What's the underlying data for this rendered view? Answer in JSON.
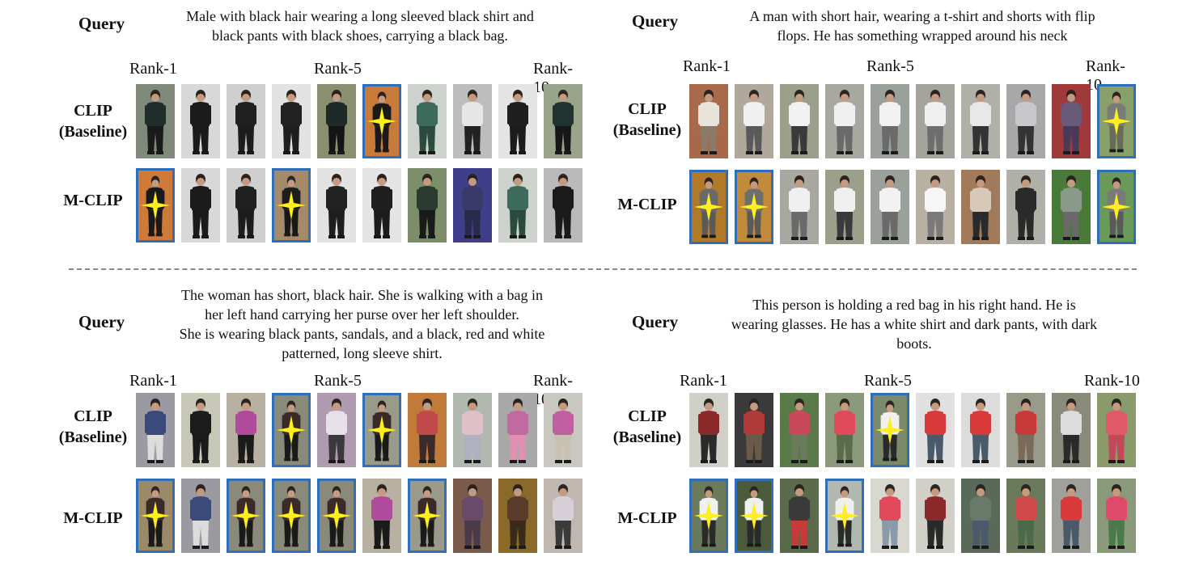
{
  "row_labels": {
    "baseline": [
      "CLIP",
      "(Baseline)"
    ],
    "ours": "M-CLIP"
  },
  "rank_labels": [
    "Rank-1",
    "Rank-5",
    "Rank-10"
  ],
  "query_label": "Query",
  "colors": {
    "match_border": "#2f6fba",
    "star": "#ffef1a",
    "background": "#ffffff"
  },
  "panels": [
    {
      "query_lines": [
        "Male with black hair wearing a long sleeved black shirt and",
        "black pants with black shoes, carrying a black bag."
      ],
      "baseline": [
        {
          "match": false,
          "top": "#1f2d2a",
          "bottom": "#1a1a1a",
          "bg": "#7f8a7a"
        },
        {
          "match": false,
          "top": "#1b1b1b",
          "bottom": "#1b1b1b",
          "bg": "#d8d8d8"
        },
        {
          "match": false,
          "top": "#202020",
          "bottom": "#1c1c1c",
          "bg": "#cfcfcf"
        },
        {
          "match": false,
          "top": "#222222",
          "bottom": "#1e1e1e",
          "bg": "#e2e2e2"
        },
        {
          "match": false,
          "top": "#1d2a28",
          "bottom": "#151515",
          "bg": "#8a8f70"
        },
        {
          "match": true,
          "top": "#1a1a1a",
          "bottom": "#191919",
          "bg": "#c97a3a"
        },
        {
          "match": false,
          "top": "#3e6a5c",
          "bottom": "#2b4a40",
          "bg": "#cdd3cc"
        },
        {
          "match": false,
          "top": "#e6e6e6",
          "bottom": "#222222",
          "bg": "#bdbdbd"
        },
        {
          "match": false,
          "top": "#1f1f1f",
          "bottom": "#1c1c1c",
          "bg": "#e4e4e4"
        },
        {
          "match": false,
          "top": "#203330",
          "bottom": "#171717",
          "bg": "#9aa48a"
        }
      ],
      "ours": [
        {
          "match": true,
          "top": "#1a1a1a",
          "bottom": "#191919",
          "bg": "#d07a3a"
        },
        {
          "match": false,
          "top": "#1b1b1b",
          "bottom": "#1b1b1b",
          "bg": "#d8d8d8"
        },
        {
          "match": false,
          "top": "#202020",
          "bottom": "#1c1c1c",
          "bg": "#cfcfcf"
        },
        {
          "match": true,
          "top": "#1c1c1c",
          "bottom": "#181818",
          "bg": "#a58a6a"
        },
        {
          "match": false,
          "top": "#222222",
          "bottom": "#1e1e1e",
          "bg": "#e2e2e2"
        },
        {
          "match": false,
          "top": "#1f1f1f",
          "bottom": "#1c1c1c",
          "bg": "#e4e4e4"
        },
        {
          "match": false,
          "top": "#2a3a2e",
          "bottom": "#1a1a1a",
          "bg": "#7c8e6a"
        },
        {
          "match": false,
          "top": "#3a3a6a",
          "bottom": "#2a2a4a",
          "bg": "#3e3e8a"
        },
        {
          "match": false,
          "top": "#3e6a5c",
          "bottom": "#2b4a40",
          "bg": "#cdd3cc"
        },
        {
          "match": false,
          "top": "#1a1a1a",
          "bottom": "#1a1a1a",
          "bg": "#b9b9b9"
        }
      ]
    },
    {
      "query_lines": [
        "A man with short hair, wearing a t-shirt and shorts with flip",
        "flops. He has something wrapped around his neck"
      ],
      "baseline": [
        {
          "match": false,
          "top": "#e8e4dc",
          "bottom": "#8a7a6a",
          "bg": "#a86a4a"
        },
        {
          "match": false,
          "top": "#f0f0f0",
          "bottom": "#5a5a5a",
          "bg": "#b0a89a"
        },
        {
          "match": false,
          "top": "#f2f2f2",
          "bottom": "#3a3a3a",
          "bg": "#9aa08a"
        },
        {
          "match": false,
          "top": "#f0f0f0",
          "bottom": "#6a6a6a",
          "bg": "#a8a8a0"
        },
        {
          "match": false,
          "top": "#f2f2f2",
          "bottom": "#6a6a6a",
          "bg": "#9aa09a"
        },
        {
          "match": false,
          "top": "#f0f0f0",
          "bottom": "#6e6e6e",
          "bg": "#a4a49c"
        },
        {
          "match": false,
          "top": "#e8e8e8",
          "bottom": "#333333",
          "bg": "#b0b0a8"
        },
        {
          "match": false,
          "top": "#c8c8cc",
          "bottom": "#333333",
          "bg": "#a8a8a8"
        },
        {
          "match": false,
          "top": "#6a5a7a",
          "bottom": "#4a3a5a",
          "bg": "#a03a3a"
        },
        {
          "match": true,
          "top": "#7a7a7a",
          "bottom": "#6a6a5a",
          "bg": "#8aa06a"
        }
      ],
      "ours": [
        {
          "match": true,
          "top": "#6a6a6a",
          "bottom": "#5a5a5a",
          "bg": "#b07a2a"
        },
        {
          "match": true,
          "top": "#6e6e6e",
          "bottom": "#5a5a5a",
          "bg": "#c08a3a"
        },
        {
          "match": false,
          "top": "#f0f0f0",
          "bottom": "#6a6a6a",
          "bg": "#a8a8a0"
        },
        {
          "match": false,
          "top": "#f0f0f0",
          "bottom": "#3a3a3a",
          "bg": "#9aa08a"
        },
        {
          "match": false,
          "top": "#f2f2f2",
          "bottom": "#6a6a6a",
          "bg": "#9aa09a"
        },
        {
          "match": false,
          "top": "#f6f6f6",
          "bottom": "#7a7a7a",
          "bg": "#b8b0a0"
        },
        {
          "match": false,
          "top": "#d8c8b8",
          "bottom": "#2a2a2a",
          "bg": "#a07a5a"
        },
        {
          "match": false,
          "top": "#2a2a2a",
          "bottom": "#2a2a2a",
          "bg": "#b0b0a8"
        },
        {
          "match": false,
          "top": "#8a9a8a",
          "bottom": "#6a6a6a",
          "bg": "#4a7a3a"
        },
        {
          "match": true,
          "top": "#7a7a7a",
          "bottom": "#5a5a5a",
          "bg": "#6a9a5a"
        }
      ]
    },
    {
      "query_lines": [
        "The woman has short, black hair. She is walking with a bag in",
        "her left hand carrying her purse over her left shoulder.",
        "She is wearing black pants, sandals, and a black, red and white",
        "patterned, long sleeve shirt."
      ],
      "baseline": [
        {
          "match": false,
          "top": "#3a4a7a",
          "bottom": "#dcdcdc",
          "bg": "#9a9aa0"
        },
        {
          "match": false,
          "top": "#1c1c1c",
          "bottom": "#1a1a1a",
          "bg": "#c8c8b8"
        },
        {
          "match": false,
          "top": "#b04a9a",
          "bottom": "#1a1a1a",
          "bg": "#b8b0a0"
        },
        {
          "match": true,
          "top": "#3a2a2a",
          "bottom": "#1a1a1a",
          "bg": "#8a8a7a"
        },
        {
          "match": false,
          "top": "#e8e0e8",
          "bottom": "#3a3a3a",
          "bg": "#b09ab0"
        },
        {
          "match": true,
          "top": "#3a2a2a",
          "bottom": "#1a1a1a",
          "bg": "#9a9a8a"
        },
        {
          "match": false,
          "top": "#c04a4a",
          "bottom": "#3a2a2a",
          "bg": "#c07a3a"
        },
        {
          "match": false,
          "top": "#e0c0c8",
          "bottom": "#b0b0c0",
          "bg": "#b0b8b0"
        },
        {
          "match": false,
          "top": "#c06aa0",
          "bottom": "#e090b0",
          "bg": "#a8a8a8"
        },
        {
          "match": false,
          "top": "#c060a0",
          "bottom": "#c8c0b0",
          "bg": "#c8c8c0"
        }
      ],
      "ours": [
        {
          "match": true,
          "top": "#3a2a2a",
          "bottom": "#1a1a1a",
          "bg": "#9a8a6a"
        },
        {
          "match": false,
          "top": "#3a4a7a",
          "bottom": "#dcdcdc",
          "bg": "#9a9aa0"
        },
        {
          "match": true,
          "top": "#3a2a2a",
          "bottom": "#1a1a1a",
          "bg": "#8a8a7a"
        },
        {
          "match": true,
          "top": "#3a2a2a",
          "bottom": "#1a1a1a",
          "bg": "#8a8a7a"
        },
        {
          "match": true,
          "top": "#3a2a2a",
          "bottom": "#1a1a1a",
          "bg": "#8a8a7a"
        },
        {
          "match": false,
          "top": "#b04a9a",
          "bottom": "#1a1a1a",
          "bg": "#b8b0a0"
        },
        {
          "match": true,
          "top": "#3a2a2a",
          "bottom": "#1a1a1a",
          "bg": "#9a9a8a"
        },
        {
          "match": false,
          "top": "#6a4a6a",
          "bottom": "#4a3a4a",
          "bg": "#7a5a4a"
        },
        {
          "match": false,
          "top": "#5a3a2a",
          "bottom": "#3a2a1a",
          "bg": "#8a6a2a"
        },
        {
          "match": false,
          "top": "#d8d0d8",
          "bottom": "#3a3a3a",
          "bg": "#c0b8b0"
        }
      ]
    },
    {
      "query_lines": [
        "This person is holding a red bag in his right hand. He is",
        "wearing glasses. He has a white shirt and dark pants, with dark",
        "boots."
      ],
      "baseline": [
        {
          "match": false,
          "top": "#8a2a2a",
          "bottom": "#2a2a2a",
          "bg": "#d0d0c8"
        },
        {
          "match": false,
          "top": "#b03a3a",
          "bottom": "#6a5a4a",
          "bg": "#3a3a3a"
        },
        {
          "match": false,
          "top": "#c84a5a",
          "bottom": "#6a7a5a",
          "bg": "#5a7a4a"
        },
        {
          "match": false,
          "top": "#e04a5a",
          "bottom": "#5a6a4a",
          "bg": "#8a9a7a"
        },
        {
          "match": true,
          "top": "#f0f0f0",
          "bottom": "#2a2a2a",
          "bg": "#7a8a6a"
        },
        {
          "match": false,
          "top": "#d83a3a",
          "bottom": "#4a5a6a",
          "bg": "#e0e0e0"
        },
        {
          "match": false,
          "top": "#d83a3a",
          "bottom": "#4a5a6a",
          "bg": "#dcdcdc"
        },
        {
          "match": false,
          "top": "#c83a3a",
          "bottom": "#7a6a5a",
          "bg": "#9a9a8a"
        },
        {
          "match": false,
          "top": "#dcdcdc",
          "bottom": "#2a2a2a",
          "bg": "#8a8a7a"
        },
        {
          "match": false,
          "top": "#e05a6a",
          "bottom": "#c04a5a",
          "bg": "#8a9a6a"
        }
      ],
      "ours": [
        {
          "match": true,
          "top": "#f0f0f0",
          "bottom": "#2a2a2a",
          "bg": "#6a7a5a"
        },
        {
          "match": true,
          "top": "#f0f0f0",
          "bottom": "#2a2a2a",
          "bg": "#4a5a3a"
        },
        {
          "match": false,
          "top": "#3a3a3a",
          "bottom": "#c83a3a",
          "bg": "#5a6a4a"
        },
        {
          "match": true,
          "top": "#f0f0f0",
          "bottom": "#2a2a2a",
          "bg": "#b0b8b0"
        },
        {
          "match": false,
          "top": "#e04a5a",
          "bottom": "#8a9aaa",
          "bg": "#d8d8d0"
        },
        {
          "match": false,
          "top": "#8a2a2a",
          "bottom": "#2a2a2a",
          "bg": "#d0d0c8"
        },
        {
          "match": false,
          "top": "#6a7a6a",
          "bottom": "#4a5a6a",
          "bg": "#5a6a5a"
        },
        {
          "match": false,
          "top": "#d04a4a",
          "bottom": "#4a6a4a",
          "bg": "#6a7a5a"
        },
        {
          "match": false,
          "top": "#d83a3a",
          "bottom": "#4a5a6a",
          "bg": "#a0a09a"
        },
        {
          "match": false,
          "top": "#e04a6a",
          "bottom": "#4a7a4a",
          "bg": "#8a9a7a"
        }
      ]
    }
  ]
}
